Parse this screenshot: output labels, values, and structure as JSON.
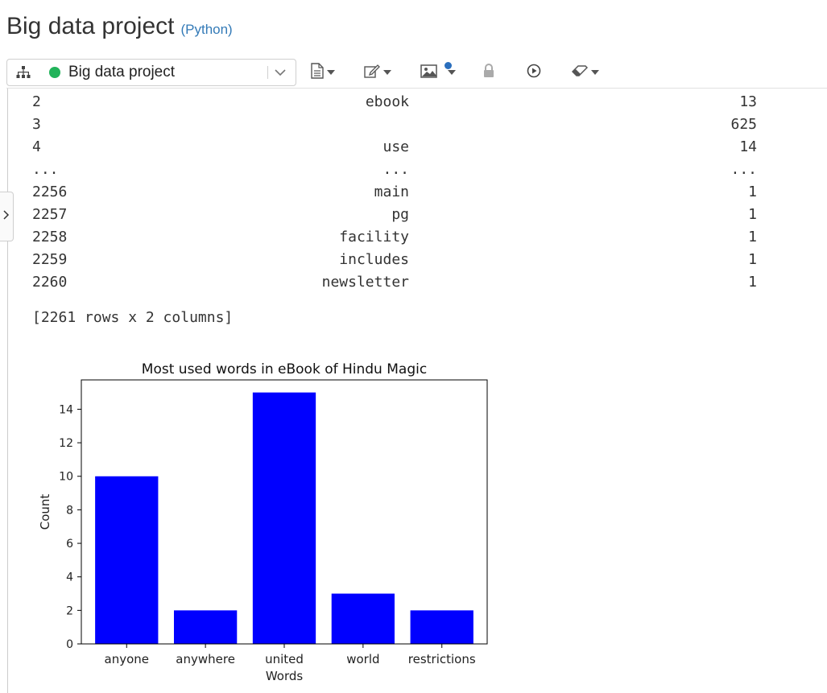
{
  "header": {
    "title": "Big data project",
    "language": "(Python)"
  },
  "toolbar": {
    "project_name": "Big data project",
    "status_color": "#21b35a",
    "icons": [
      "sitemap-icon",
      "document-icon",
      "edit-icon",
      "image-icon",
      "lock-icon",
      "play-icon",
      "eraser-icon"
    ]
  },
  "output": {
    "rows": [
      {
        "index": "2",
        "word": "ebook",
        "count": "13"
      },
      {
        "index": "3",
        "word": "",
        "count": "625"
      },
      {
        "index": "4",
        "word": "use",
        "count": "14"
      },
      {
        "index": "...",
        "word": "...",
        "count": "..."
      },
      {
        "index": "2256",
        "word": "main",
        "count": "1"
      },
      {
        "index": "2257",
        "word": "pg",
        "count": "1"
      },
      {
        "index": "2258",
        "word": "facility",
        "count": "1"
      },
      {
        "index": "2259",
        "word": "includes",
        "count": "1"
      },
      {
        "index": "2260",
        "word": "newsletter",
        "count": "1"
      }
    ],
    "shape": "[2261 rows x 2 columns]"
  },
  "chart_data": {
    "type": "bar",
    "title": "Most used words in eBook of Hindu Magic",
    "xlabel": "Words",
    "ylabel": "Count",
    "categories": [
      "anyone",
      "anywhere",
      "united",
      "world",
      "restrictions"
    ],
    "values": [
      10,
      2,
      15,
      3,
      2
    ],
    "ylim": [
      0,
      15.75
    ],
    "yticks": [
      0,
      2,
      4,
      6,
      8,
      10,
      12,
      14
    ],
    "bar_color": "#0000ff",
    "grid": false
  }
}
